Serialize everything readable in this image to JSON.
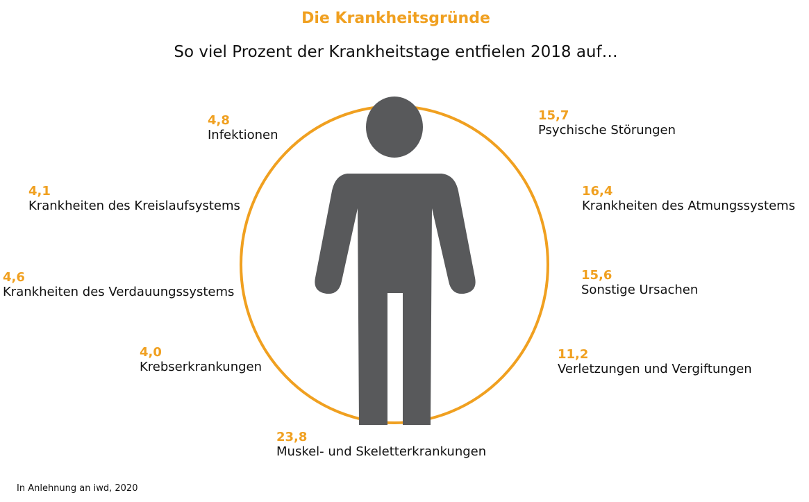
{
  "title": "Die Krankheitsgründe",
  "subtitle": "So viel Prozent der Krankheitstage entfielen 2018 auf…",
  "source": "In Anlehnung an iwd, 2020",
  "colors": {
    "accent": "#F0A020",
    "figure": "#58595B",
    "text": "#111111"
  },
  "icons": {
    "center": "person-icon"
  },
  "chart_data": {
    "type": "pie",
    "unit": "%",
    "items": [
      {
        "label": "Infektionen",
        "value": "4,8"
      },
      {
        "label": "Krankheiten des Kreislaufsystems",
        "value": "4,1"
      },
      {
        "label": "Krankheiten des Verdauungssystems",
        "value": "4,6"
      },
      {
        "label": "Krebserkrankungen",
        "value": "4,0"
      },
      {
        "label": "Muskel- und Skeletterkrankungen",
        "value": "23,8"
      },
      {
        "label": "Psychische Störungen",
        "value": "15,7"
      },
      {
        "label": "Krankheiten des Atmungssystems",
        "value": "16,4"
      },
      {
        "label": "Sonstige Ursachen",
        "value": "15,6"
      },
      {
        "label": "Verletzungen und Vergiftungen",
        "value": "11,2"
      }
    ]
  }
}
